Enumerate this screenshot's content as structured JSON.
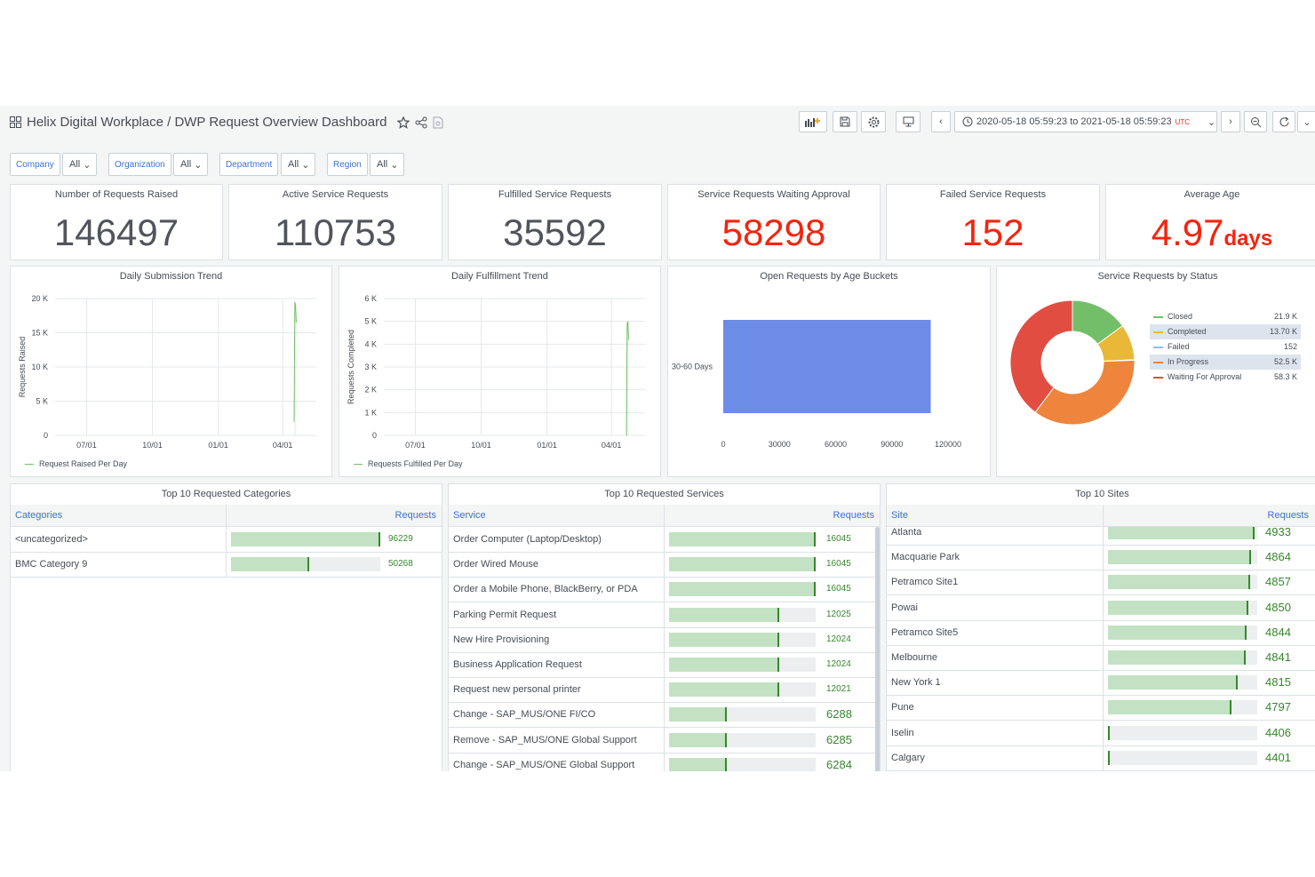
{
  "header": {
    "breadcrumb": "Helix Digital Workplace / DWP Request Overview Dashboard",
    "time_range": "2020-05-18 05:59:23 to 2021-05-18 05:59:23",
    "timezone": "UTC"
  },
  "variables": [
    {
      "label": "Company",
      "value": "All"
    },
    {
      "label": "Organization",
      "value": "All"
    },
    {
      "label": "Department",
      "value": "All"
    },
    {
      "label": "Region",
      "value": "All"
    }
  ],
  "stats": [
    {
      "title": "Number of Requests Raised",
      "value": "146497",
      "unit": "",
      "color": "#52545c"
    },
    {
      "title": "Active Service Requests",
      "value": "110753",
      "unit": "",
      "color": "#52545c"
    },
    {
      "title": "Fulfilled Service Requests",
      "value": "35592",
      "unit": "",
      "color": "#52545c"
    },
    {
      "title": "Service Requests Waiting Approval",
      "value": "58298",
      "unit": "",
      "color": "#f2250f"
    },
    {
      "title": "Failed Service Requests",
      "value": "152",
      "unit": "",
      "color": "#f2250f"
    },
    {
      "title": "Average Age",
      "value": "4.97",
      "unit": "days",
      "color": "#f2250f"
    }
  ],
  "chart_data": [
    {
      "type": "line",
      "title": "Daily Submission Trend",
      "ylabel": "Requests Raised",
      "x_ticks": [
        "07/01",
        "10/01",
        "01/01",
        "04/01"
      ],
      "y_ticks": [
        "0",
        "5 K",
        "10 K",
        "15 K",
        "20 K"
      ],
      "ylim": [
        0,
        20000
      ],
      "series": [
        {
          "name": "Request Raised Per Day",
          "color": "#73bf69",
          "x": [
            "2021-04-17",
            "2021-04-18",
            "2021-04-19",
            "2021-04-20"
          ],
          "values": [
            2000,
            19500,
            19000,
            16500
          ]
        }
      ]
    },
    {
      "type": "line",
      "title": "Daily Fulfillment Trend",
      "ylabel": "Requests Completed",
      "x_ticks": [
        "07/01",
        "10/01",
        "01/01",
        "04/01"
      ],
      "y_ticks": [
        "0",
        "1 K",
        "2 K",
        "3 K",
        "4 K",
        "5 K",
        "6 K"
      ],
      "ylim": [
        0,
        6000
      ],
      "series": [
        {
          "name": "Requests Fulfilled Per Day",
          "color": "#73bf69",
          "x": [
            "2021-04-22",
            "2021-04-23",
            "2021-04-24",
            "2021-04-25"
          ],
          "values": [
            0,
            4900,
            5000,
            4200
          ]
        }
      ]
    },
    {
      "type": "bar",
      "title": "Open Requests by Age Buckets",
      "orientation": "horizontal",
      "categories": [
        "30-60 Days"
      ],
      "values": [
        110753
      ],
      "xlim": [
        0,
        120000
      ],
      "x_ticks": [
        "0",
        "30000",
        "60000",
        "90000",
        "120000"
      ],
      "color": "#6d8ce8"
    },
    {
      "type": "pie",
      "title": "Service Requests by Status",
      "donut": true,
      "legend": "right",
      "slices": [
        {
          "name": "Closed",
          "value": 21900,
          "label": "21.9 K",
          "color": "#73bf69"
        },
        {
          "name": "Completed",
          "value": 13700,
          "label": "13.70 K",
          "color": "#eab839"
        },
        {
          "name": "Failed",
          "value": 152,
          "label": "152",
          "color": "#6ed0e0"
        },
        {
          "name": "In Progress",
          "value": 52500,
          "label": "52.5 K",
          "color": "#ef843c"
        },
        {
          "name": "Waiting For Approval",
          "value": 58300,
          "label": "58.3 K",
          "color": "#e24d42"
        }
      ]
    }
  ],
  "categories_table": {
    "title": "Top 10 Requested Categories",
    "col1": "Categories",
    "col2": "Requests",
    "max": 96229,
    "rows": [
      {
        "name": "<uncategorized>",
        "value": 96229
      },
      {
        "name": "BMC Category 9",
        "value": 50268
      }
    ]
  },
  "services_table": {
    "title": "Top 10 Requested Services",
    "col1": "Service",
    "col2": "Requests",
    "max": 16045,
    "rows": [
      {
        "name": "Order Computer (Laptop/Desktop)",
        "value": 16045
      },
      {
        "name": "Order Wired Mouse",
        "value": 16045
      },
      {
        "name": "Order a Mobile Phone, BlackBerry, or PDA",
        "value": 16045
      },
      {
        "name": "Parking Permit Request",
        "value": 12025
      },
      {
        "name": "New Hire Provisioning",
        "value": 12024
      },
      {
        "name": "Business Application Request",
        "value": 12024
      },
      {
        "name": "Request new personal printer",
        "value": 12021
      },
      {
        "name": "Change - SAP_MUS/ONE FI/CO",
        "value": 6288
      },
      {
        "name": "Remove - SAP_MUS/ONE Global Support",
        "value": 6285
      },
      {
        "name": "Change - SAP_MUS/ONE Global Support",
        "value": 6284
      }
    ]
  },
  "sites_table": {
    "title": "Top 10 Sites",
    "col1": "Site",
    "col2": "Requests",
    "rows": [
      {
        "name": "Atlanta",
        "value": 4933,
        "fill": 0.98
      },
      {
        "name": "Macquarie Park",
        "value": 4864,
        "fill": 0.96
      },
      {
        "name": "Petramco Site1",
        "value": 4857,
        "fill": 0.95
      },
      {
        "name": "Powai",
        "value": 4850,
        "fill": 0.94
      },
      {
        "name": "Petramco Site5",
        "value": 4844,
        "fill": 0.93
      },
      {
        "name": "Melbourne",
        "value": 4841,
        "fill": 0.92
      },
      {
        "name": "New York 1",
        "value": 4815,
        "fill": 0.87
      },
      {
        "name": "Pune",
        "value": 4797,
        "fill": 0.83
      },
      {
        "name": "Iselin",
        "value": 4406,
        "fill": 0.0
      },
      {
        "name": "Calgary",
        "value": 4401,
        "fill": 0.0
      }
    ]
  }
}
